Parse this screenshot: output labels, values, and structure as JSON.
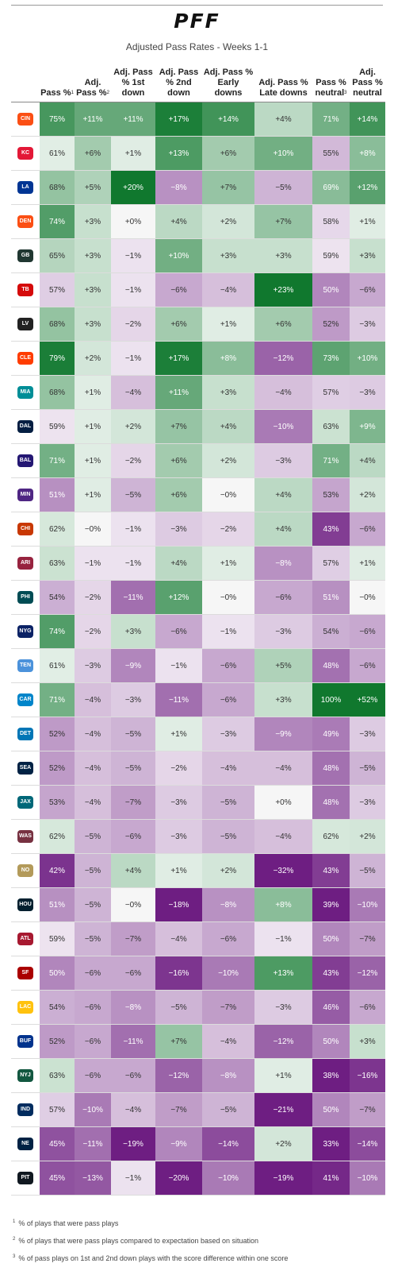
{
  "brand": "PFF",
  "chart_data": {
    "type": "table",
    "title": "Adjusted Pass Rates - Weeks 1-1",
    "columns": [
      {
        "label": "Pass %",
        "note": "1"
      },
      {
        "label": "Adj. Pass %",
        "note": "2"
      },
      {
        "label": "Adj. Pass % 1st down",
        "note": ""
      },
      {
        "label": "Adj. Pass % 2nd down",
        "note": ""
      },
      {
        "label": "Adj. Pass % Early downs",
        "note": ""
      },
      {
        "label": "Adj. Pass % Late downs",
        "note": ""
      },
      {
        "label": "Pass % neutral",
        "note": "3"
      },
      {
        "label": "Adj. Pass % neutral",
        "note": ""
      }
    ],
    "rows": [
      {
        "team": "bengals-logo",
        "abbr": "CIN",
        "color": "#fb4f14",
        "values": [
          75,
          11,
          11,
          17,
          14,
          4,
          71,
          14
        ]
      },
      {
        "team": "chiefs-logo",
        "abbr": "KC",
        "color": "#e31837",
        "values": [
          61,
          6,
          1,
          13,
          6,
          10,
          55,
          8
        ]
      },
      {
        "team": "rams-logo",
        "abbr": "LA",
        "color": "#003594",
        "values": [
          68,
          5,
          20,
          -8,
          7,
          -5,
          69,
          12
        ]
      },
      {
        "team": "broncos-logo",
        "abbr": "DEN",
        "color": "#fb4f14",
        "values": [
          74,
          3,
          0,
          4,
          2,
          7,
          58,
          1
        ]
      },
      {
        "team": "packers-logo",
        "abbr": "GB",
        "color": "#203731",
        "values": [
          65,
          3,
          -1,
          10,
          3,
          3,
          59,
          3
        ]
      },
      {
        "team": "buccaneers-logo",
        "abbr": "TB",
        "color": "#d50a0a",
        "values": [
          57,
          3,
          -1,
          -6,
          -4,
          23,
          50,
          -6
        ]
      },
      {
        "team": "raiders-logo",
        "abbr": "LV",
        "color": "#222222",
        "values": [
          68,
          3,
          -2,
          6,
          1,
          6,
          52,
          -3
        ]
      },
      {
        "team": "browns-logo",
        "abbr": "CLE",
        "color": "#ff3c00",
        "values": [
          79,
          2,
          -1,
          17,
          8,
          -12,
          73,
          10
        ]
      },
      {
        "team": "dolphins-logo",
        "abbr": "MIA",
        "color": "#008e97",
        "values": [
          68,
          1,
          -4,
          11,
          3,
          -4,
          57,
          -3
        ]
      },
      {
        "team": "cowboys-logo",
        "abbr": "DAL",
        "color": "#041e42",
        "values": [
          59,
          1,
          2,
          7,
          4,
          -10,
          63,
          9
        ]
      },
      {
        "team": "ravens-logo",
        "abbr": "BAL",
        "color": "#241773",
        "values": [
          71,
          1,
          -2,
          6,
          2,
          -3,
          71,
          4
        ]
      },
      {
        "team": "vikings-logo",
        "abbr": "MIN",
        "color": "#4f2683",
        "values": [
          51,
          1,
          -5,
          6,
          0,
          4,
          53,
          2
        ]
      },
      {
        "team": "bears-logo",
        "abbr": "CHI",
        "color": "#c83803",
        "values": [
          62,
          0,
          -1,
          -3,
          -2,
          4,
          43,
          -6
        ]
      },
      {
        "team": "cardinals-logo",
        "abbr": "ARI",
        "color": "#97233f",
        "values": [
          63,
          -1,
          -1,
          4,
          1,
          -8,
          57,
          1
        ]
      },
      {
        "team": "eagles-logo",
        "abbr": "PHI",
        "color": "#004c54",
        "values": [
          54,
          -2,
          -11,
          12,
          0,
          -6,
          51,
          0
        ]
      },
      {
        "team": "giants-logo",
        "abbr": "NYG",
        "color": "#0b2265",
        "values": [
          74,
          -2,
          3,
          -6,
          -1,
          -3,
          54,
          -6
        ]
      },
      {
        "team": "titans-logo",
        "abbr": "TEN",
        "color": "#4b92db",
        "values": [
          61,
          -3,
          -9,
          -1,
          -6,
          5,
          48,
          -6
        ]
      },
      {
        "team": "panthers-logo",
        "abbr": "CAR",
        "color": "#0085ca",
        "values": [
          71,
          -4,
          -3,
          -11,
          -6,
          3,
          100,
          52
        ]
      },
      {
        "team": "lions-logo",
        "abbr": "DET",
        "color": "#0076b6",
        "values": [
          52,
          -4,
          -5,
          1,
          -3,
          -9,
          49,
          -3
        ]
      },
      {
        "team": "seahawks-logo",
        "abbr": "SEA",
        "color": "#002244",
        "values": [
          52,
          -4,
          -5,
          -2,
          -4,
          -4,
          48,
          -5
        ]
      },
      {
        "team": "jaguars-logo",
        "abbr": "JAX",
        "color": "#006778",
        "values": [
          53,
          -4,
          -7,
          -3,
          -5,
          0,
          48,
          -3
        ]
      },
      {
        "team": "commanders-logo",
        "abbr": "WAS",
        "color": "#773141",
        "values": [
          62,
          -5,
          -6,
          -3,
          -5,
          -4,
          62,
          2
        ]
      },
      {
        "team": "saints-logo",
        "abbr": "NO",
        "color": "#b39a5a",
        "values": [
          42,
          -5,
          4,
          1,
          2,
          -32,
          43,
          -5
        ]
      },
      {
        "team": "texans-logo",
        "abbr": "HOU",
        "color": "#03202f",
        "values": [
          51,
          -5,
          0,
          -18,
          -8,
          8,
          39,
          -10
        ]
      },
      {
        "team": "falcons-logo",
        "abbr": "ATL",
        "color": "#a71930",
        "values": [
          59,
          -5,
          -7,
          -4,
          -6,
          -1,
          50,
          -7
        ]
      },
      {
        "team": "49ers-logo",
        "abbr": "SF",
        "color": "#aa0000",
        "values": [
          50,
          -6,
          -6,
          -16,
          -10,
          13,
          43,
          -12
        ]
      },
      {
        "team": "chargers-logo",
        "abbr": "LAC",
        "color": "#ffc20e",
        "values": [
          54,
          -6,
          -8,
          -5,
          -7,
          -3,
          46,
          -6
        ]
      },
      {
        "team": "bills-logo",
        "abbr": "BUF",
        "color": "#00338d",
        "values": [
          52,
          -6,
          -11,
          7,
          -4,
          -12,
          50,
          3
        ]
      },
      {
        "team": "jets-logo",
        "abbr": "NYJ",
        "color": "#125740",
        "values": [
          63,
          -6,
          -6,
          -12,
          -8,
          1,
          38,
          -16
        ]
      },
      {
        "team": "colts-logo",
        "abbr": "IND",
        "color": "#002c5f",
        "values": [
          57,
          -10,
          -4,
          -7,
          -5,
          -21,
          50,
          -7
        ]
      },
      {
        "team": "patriots-logo",
        "abbr": "NE",
        "color": "#002244",
        "values": [
          45,
          -11,
          -19,
          -9,
          -14,
          2,
          33,
          -14
        ]
      },
      {
        "team": "steelers-logo",
        "abbr": "PIT",
        "color": "#101820",
        "values": [
          45,
          -13,
          -1,
          -20,
          -10,
          -19,
          41,
          -10
        ]
      }
    ]
  },
  "footnotes": [
    {
      "mark": "1",
      "text": "% of plays that were pass plays"
    },
    {
      "mark": "2",
      "text": "% of plays that were pass plays compared to expectation based on situation"
    },
    {
      "mark": "3",
      "text": "% of pass plays on 1st and 2nd down plays with the score difference within one score"
    }
  ]
}
